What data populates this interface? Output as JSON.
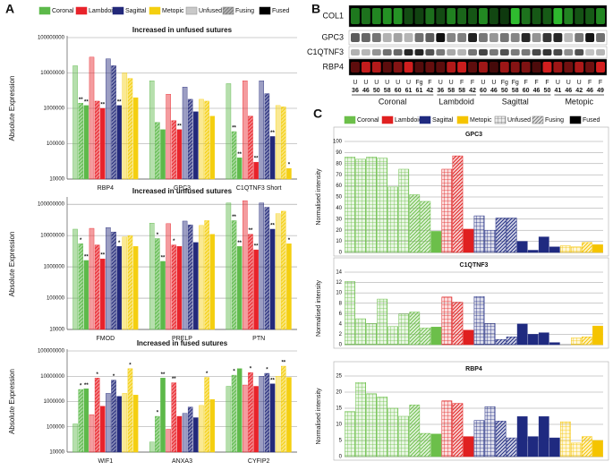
{
  "panel_labels": [
    "A",
    "B",
    "C"
  ],
  "legend_a": {
    "sutures": [
      {
        "name": "Coronal",
        "color": "#5db94a"
      },
      {
        "name": "Lambdoid",
        "color": "#e8232a"
      },
      {
        "name": "Sagittal",
        "color": "#23297a"
      },
      {
        "name": "Metopic",
        "color": "#f4cf10"
      }
    ],
    "stages": [
      {
        "name": "Unfused",
        "pattern": "light",
        "color": "#888888"
      },
      {
        "name": "Fusing",
        "pattern": "hatch",
        "color": "#777777"
      },
      {
        "name": "Fused",
        "pattern": "solid",
        "color": "#000000"
      }
    ]
  },
  "legend_c": {
    "sutures": [
      {
        "name": "Coronal",
        "color": "#6cbf4a"
      },
      {
        "name": "Lambdoid",
        "color": "#e02020"
      },
      {
        "name": "Sagittal",
        "color": "#1f2a80"
      },
      {
        "name": "Metopic",
        "color": "#f5c400"
      }
    ],
    "stages": [
      {
        "name": "Unfused",
        "pattern": "grid",
        "color": "#777777"
      },
      {
        "name": "Fusing",
        "pattern": "diagonal",
        "color": "#777777"
      },
      {
        "name": "Fused",
        "pattern": "solid",
        "color": "#000000"
      }
    ]
  },
  "blot": {
    "rows": [
      "COL1",
      "GPC3",
      "C1QTNF3",
      "RBP4"
    ],
    "groups": [
      {
        "name": "Coronal",
        "lanes": [
          {
            "stage": "U",
            "age": 36
          },
          {
            "stage": "U",
            "age": 46
          },
          {
            "stage": "U",
            "age": 50
          },
          {
            "stage": "U",
            "age": 58
          },
          {
            "stage": "U",
            "age": 60
          },
          {
            "stage": "U",
            "age": 61
          },
          {
            "stage": "Fg",
            "age": 61
          },
          {
            "stage": "F",
            "age": 42
          }
        ]
      },
      {
        "name": "Lambdoid",
        "lanes": [
          {
            "stage": "U",
            "age": 36
          },
          {
            "stage": "U",
            "age": 58
          },
          {
            "stage": "F",
            "age": 58
          },
          {
            "stage": "F",
            "age": 42
          }
        ]
      },
      {
        "name": "Sagittal",
        "lanes": [
          {
            "stage": "U",
            "age": 60
          },
          {
            "stage": "U",
            "age": 46
          },
          {
            "stage": "Fg",
            "age": 50
          },
          {
            "stage": "Fg",
            "age": 58
          },
          {
            "stage": "F",
            "age": 60
          },
          {
            "stage": "F",
            "age": 46
          },
          {
            "stage": "F",
            "age": 50
          }
        ]
      },
      {
        "name": "Metopic",
        "lanes": [
          {
            "stage": "U",
            "age": 41
          },
          {
            "stage": "U",
            "age": 46
          },
          {
            "stage": "U",
            "age": 42
          },
          {
            "stage": "F",
            "age": 46
          },
          {
            "stage": "F",
            "age": 49
          }
        ]
      }
    ]
  },
  "chart_data": [
    {
      "type": "logbar",
      "title": "Increased in unfused sutures",
      "ylabel": "Absolute Expression",
      "log": true,
      "grid": true,
      "ylim": [
        10000,
        100000000
      ],
      "yticks": [
        10000,
        100000,
        1000000,
        10000000,
        100000000
      ],
      "categories": [
        "RBP4",
        "GPC3",
        "C1QTNF3 Short"
      ],
      "colors": [
        "#5db94a",
        "#5db94a",
        "#5db94a",
        "#e8232a",
        "#e8232a",
        "#e8232a",
        "#23297a",
        "#23297a",
        "#23297a",
        "#f4cf10",
        "#f4cf10",
        "#f4cf10"
      ],
      "patterns": [
        "light",
        "hatch",
        "solid",
        "light",
        "hatch",
        "solid",
        "light",
        "hatch",
        "solid",
        "light",
        "hatch",
        "solid"
      ],
      "values": [
        [
          16000000,
          1400000,
          1200000,
          28000000,
          1600000,
          1000000,
          25000000,
          16000000,
          1200000,
          10000000,
          7000000,
          2000000
        ],
        [
          6000000,
          400000,
          250000,
          2500000,
          450000,
          250000,
          4000000,
          1800000,
          800000,
          1800000,
          1600000,
          600000
        ],
        [
          5000000,
          220000,
          40000,
          6000000,
          600000,
          30000,
          6000000,
          2600000,
          160000,
          1200000,
          1100000,
          20000
        ]
      ],
      "stars": [
        [
          null,
          "**",
          "**",
          null,
          null,
          "**",
          null,
          null,
          "**",
          null,
          null,
          null
        ],
        [
          null,
          null,
          null,
          null,
          null,
          "**",
          null,
          null,
          null,
          null,
          null,
          null
        ],
        [
          null,
          "**",
          "**",
          null,
          null,
          "**",
          null,
          null,
          "**",
          null,
          null,
          "*"
        ]
      ]
    },
    {
      "type": "logbar",
      "title": "Increased in unfused sutures",
      "ylabel": "Absolute Expression",
      "log": true,
      "grid": true,
      "ylim": [
        10000,
        150000000
      ],
      "yticks": [
        10000,
        100000,
        1000000,
        10000000,
        100000000
      ],
      "categories": [
        "FMOD",
        "PRELP",
        "PTN"
      ],
      "colors": [
        "#5db94a",
        "#5db94a",
        "#5db94a",
        "#e8232a",
        "#e8232a",
        "#e8232a",
        "#23297a",
        "#23297a",
        "#23297a",
        "#f4cf10",
        "#f4cf10",
        "#f4cf10"
      ],
      "patterns": [
        "light",
        "hatch",
        "solid",
        "light",
        "hatch",
        "solid",
        "light",
        "hatch",
        "solid",
        "light",
        "hatch",
        "solid"
      ],
      "values": [
        [
          16000000,
          5500000,
          1600000,
          17000000,
          5000000,
          1800000,
          18000000,
          13000000,
          4500000,
          9000000,
          10000000,
          4500000
        ],
        [
          25000000,
          8000000,
          1500000,
          24000000,
          5000000,
          4500000,
          29000000,
          22000000,
          6000000,
          21000000,
          30000000,
          11000000
        ],
        [
          110000000,
          30000000,
          4500000,
          130000000,
          11000000,
          3500000,
          110000000,
          80000000,
          16000000,
          50000000,
          60000000,
          5500000
        ]
      ],
      "stars": [
        [
          null,
          "*",
          "**",
          null,
          null,
          "**",
          null,
          null,
          "*",
          null,
          null,
          null
        ],
        [
          null,
          "*",
          "**",
          null,
          "*",
          null,
          null,
          null,
          null,
          null,
          null,
          null
        ],
        [
          null,
          "**",
          "**",
          null,
          "**",
          "**",
          null,
          null,
          "**",
          null,
          null,
          "*"
        ]
      ]
    },
    {
      "type": "logbar",
      "title": "Increased in fused sutures",
      "ylabel": "Absolute Expression",
      "log": true,
      "grid": true,
      "ylim": [
        10000,
        100000000
      ],
      "yticks": [
        10000,
        100000,
        1000000,
        10000000,
        100000000
      ],
      "categories": [
        "WIF1",
        "ANXA3",
        "CYFIP2"
      ],
      "colors": [
        "#5db94a",
        "#5db94a",
        "#5db94a",
        "#e8232a",
        "#e8232a",
        "#e8232a",
        "#23297a",
        "#23297a",
        "#23297a",
        "#f4cf10",
        "#f4cf10",
        "#f4cf10"
      ],
      "patterns": [
        "light",
        "hatch",
        "solid",
        "light",
        "hatch",
        "solid",
        "light",
        "hatch",
        "solid",
        "light",
        "hatch",
        "solid"
      ],
      "values": [
        [
          130000,
          3000000,
          3200000,
          300000,
          8500000,
          650000,
          2100000,
          7000000,
          1600000,
          2100000,
          20000000,
          1800000
        ],
        [
          25000,
          260000,
          8500000,
          80000,
          5500000,
          260000,
          340000,
          600000,
          230000,
          700000,
          9000000,
          1200000
        ],
        [
          4000000,
          11000000,
          20000000,
          4500000,
          14000000,
          4000000,
          10000000,
          13000000,
          5000000,
          10000000,
          25000000,
          9000000
        ]
      ],
      "stars": [
        [
          null,
          "*",
          "**",
          null,
          "*",
          null,
          null,
          "*",
          null,
          null,
          "*",
          null
        ],
        [
          null,
          "*",
          "**",
          null,
          "**",
          null,
          null,
          null,
          null,
          null,
          "*",
          null
        ],
        [
          null,
          "*",
          null,
          null,
          "*",
          null,
          null,
          "*",
          "**",
          null,
          "**",
          null
        ]
      ]
    },
    {
      "type": "bar",
      "title": "GPC3",
      "ylabel": "Normalised intensity",
      "grid": true,
      "ylim": [
        0,
        100
      ],
      "yticks": [
        0,
        10,
        20,
        30,
        40,
        50,
        60,
        70,
        80,
        90,
        100
      ],
      "values": [
        86,
        84,
        86,
        85,
        59,
        75,
        52,
        46,
        19,
        75,
        87,
        21,
        33,
        20,
        31,
        31,
        10,
        2,
        14,
        5,
        6,
        5,
        9,
        7
      ],
      "colors": [
        "#6cbf4a",
        "#6cbf4a",
        "#6cbf4a",
        "#6cbf4a",
        "#6cbf4a",
        "#6cbf4a",
        "#6cbf4a",
        "#6cbf4a",
        "#6cbf4a",
        "#e02020",
        "#e02020",
        "#e02020",
        "#1f2a80",
        "#1f2a80",
        "#1f2a80",
        "#1f2a80",
        "#1f2a80",
        "#1f2a80",
        "#1f2a80",
        "#1f2a80",
        "#f5c400",
        "#f5c400",
        "#f5c400",
        "#f5c400"
      ],
      "patterns": [
        "grid",
        "grid",
        "grid",
        "grid",
        "grid",
        "grid",
        "diagonal",
        "diagonal",
        "solid",
        "grid",
        "diagonal",
        "solid",
        "grid",
        "grid",
        "diagonal",
        "diagonal",
        "solid",
        "solid",
        "solid",
        "solid",
        "grid",
        "grid",
        "diagonal",
        "solid"
      ]
    },
    {
      "type": "bar",
      "title": "C1QTNF3",
      "ylabel": "Normalised intensity",
      "grid": true,
      "ylim": [
        0,
        14
      ],
      "yticks": [
        0,
        2,
        4,
        6,
        8,
        10,
        12,
        14
      ],
      "values": [
        12.2,
        5,
        4.1,
        8.8,
        3.5,
        5.9,
        6.3,
        3.2,
        3.4,
        9.2,
        8.2,
        2.8,
        9.3,
        4.1,
        1,
        1.5,
        4,
        2,
        2.3,
        0.4,
        0,
        1.3,
        1.5,
        3.6
      ],
      "colors": [
        "#6cbf4a",
        "#6cbf4a",
        "#6cbf4a",
        "#6cbf4a",
        "#6cbf4a",
        "#6cbf4a",
        "#6cbf4a",
        "#6cbf4a",
        "#6cbf4a",
        "#e02020",
        "#e02020",
        "#e02020",
        "#1f2a80",
        "#1f2a80",
        "#1f2a80",
        "#1f2a80",
        "#1f2a80",
        "#1f2a80",
        "#1f2a80",
        "#1f2a80",
        "#f5c400",
        "#f5c400",
        "#f5c400",
        "#f5c400"
      ],
      "patterns": [
        "grid",
        "grid",
        "grid",
        "grid",
        "grid",
        "grid",
        "diagonal",
        "diagonal",
        "solid",
        "grid",
        "diagonal",
        "solid",
        "grid",
        "grid",
        "diagonal",
        "diagonal",
        "solid",
        "solid",
        "solid",
        "solid",
        "grid",
        "grid",
        "diagonal",
        "solid"
      ]
    },
    {
      "type": "bar",
      "title": "RBP4",
      "ylabel": "Normalised intensity",
      "grid": true,
      "ylim": [
        0,
        25
      ],
      "yticks": [
        0,
        5,
        10,
        15,
        20,
        25
      ],
      "values": [
        14,
        23,
        19.5,
        18.5,
        15,
        12.5,
        16,
        7.2,
        7,
        17.3,
        16.5,
        6.2,
        11.2,
        15.5,
        11,
        5.8,
        12.4,
        6.2,
        12.4,
        5.8,
        10.8,
        4.2,
        6.2,
        5
      ],
      "colors": [
        "#6cbf4a",
        "#6cbf4a",
        "#6cbf4a",
        "#6cbf4a",
        "#6cbf4a",
        "#6cbf4a",
        "#6cbf4a",
        "#6cbf4a",
        "#6cbf4a",
        "#e02020",
        "#e02020",
        "#e02020",
        "#1f2a80",
        "#1f2a80",
        "#1f2a80",
        "#1f2a80",
        "#1f2a80",
        "#1f2a80",
        "#1f2a80",
        "#1f2a80",
        "#f5c400",
        "#f5c400",
        "#f5c400",
        "#f5c400"
      ],
      "patterns": [
        "grid",
        "grid",
        "grid",
        "grid",
        "grid",
        "grid",
        "diagonal",
        "diagonal",
        "solid",
        "grid",
        "diagonal",
        "solid",
        "grid",
        "grid",
        "diagonal",
        "diagonal",
        "solid",
        "solid",
        "solid",
        "solid",
        "grid",
        "grid",
        "diagonal",
        "solid"
      ]
    }
  ]
}
